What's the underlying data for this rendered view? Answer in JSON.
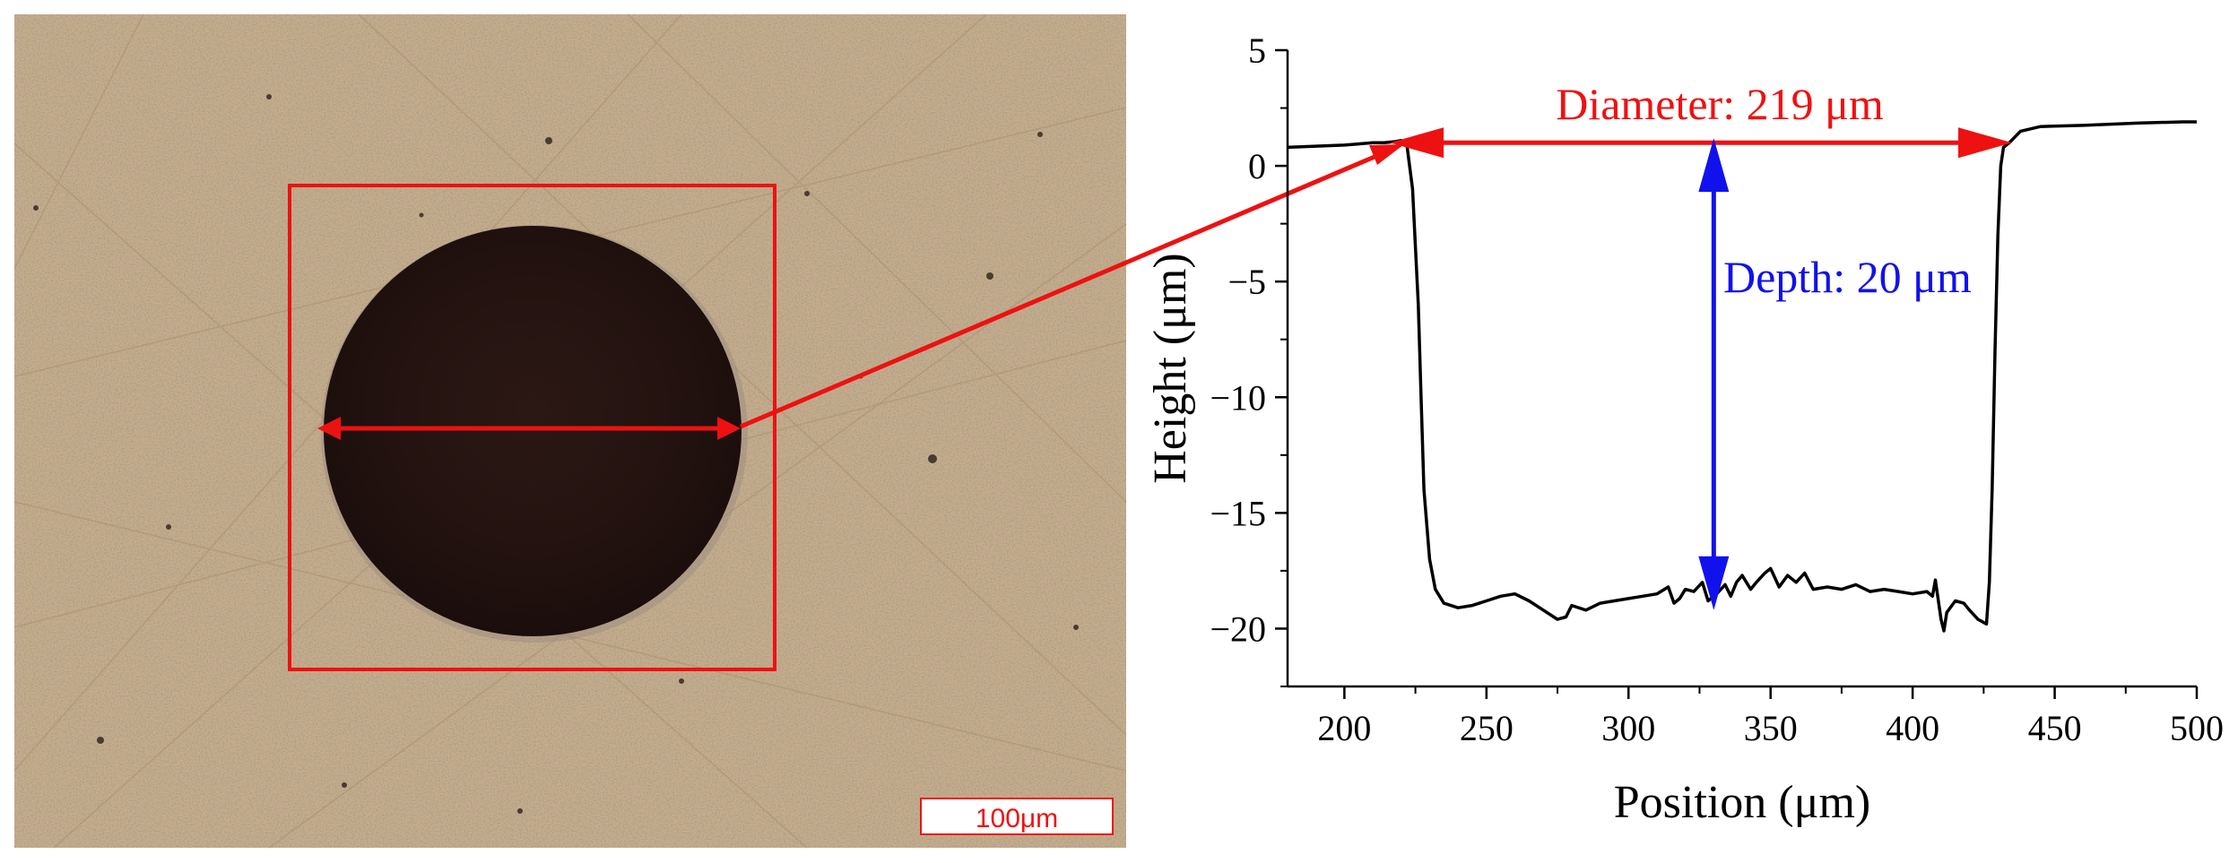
{
  "micrograph": {
    "scale_bar_label": "100μm",
    "box_color": "#ee1111",
    "arrow_color": "#ee1111"
  },
  "chart_data": {
    "type": "line",
    "xlabel": "Position (μm)",
    "ylabel": "Height (μm)",
    "xlim": [
      180,
      500
    ],
    "ylim": [
      -22.5,
      5
    ],
    "x_ticks": [
      200,
      250,
      300,
      350,
      400,
      450,
      500
    ],
    "y_ticks": [
      5,
      0,
      -5,
      -10,
      -15,
      -20
    ],
    "x_tick_labels": [
      "200",
      "250",
      "300",
      "350",
      "400",
      "450",
      "500"
    ],
    "y_tick_labels": [
      "5",
      "0",
      "−5",
      "−10",
      "−15",
      "−20"
    ],
    "grid": false,
    "series": [
      {
        "color": "#000000",
        "points": [
          [
            180,
            0.8
          ],
          [
            190,
            0.85
          ],
          [
            200,
            0.9
          ],
          [
            205,
            0.95
          ],
          [
            210,
            1.0
          ],
          [
            214,
            1.0
          ],
          [
            218,
            1.05
          ],
          [
            220,
            1.1
          ],
          [
            222,
            0.9
          ],
          [
            224,
            -1
          ],
          [
            226,
            -6
          ],
          [
            227,
            -10
          ],
          [
            228,
            -14
          ],
          [
            230,
            -17
          ],
          [
            232,
            -18.3
          ],
          [
            235,
            -18.9
          ],
          [
            240,
            -19.1
          ],
          [
            245,
            -19.0
          ],
          [
            250,
            -18.8
          ],
          [
            255,
            -18.6
          ],
          [
            260,
            -18.5
          ],
          [
            265,
            -18.8
          ],
          [
            270,
            -19.2
          ],
          [
            275,
            -19.6
          ],
          [
            278,
            -19.5
          ],
          [
            280,
            -19.0
          ],
          [
            285,
            -19.2
          ],
          [
            290,
            -18.9
          ],
          [
            295,
            -18.8
          ],
          [
            300,
            -18.7
          ],
          [
            305,
            -18.6
          ],
          [
            310,
            -18.5
          ],
          [
            314,
            -18.2
          ],
          [
            316,
            -18.9
          ],
          [
            318,
            -18.7
          ],
          [
            320,
            -18.3
          ],
          [
            323,
            -18.4
          ],
          [
            326,
            -18.0
          ],
          [
            328,
            -18.8
          ],
          [
            331,
            -18.5
          ],
          [
            334,
            -18.1
          ],
          [
            336,
            -18.6
          ],
          [
            338,
            -18.0
          ],
          [
            340,
            -17.7
          ],
          [
            343,
            -18.3
          ],
          [
            345,
            -18.0
          ],
          [
            348,
            -17.6
          ],
          [
            350,
            -17.4
          ],
          [
            353,
            -18.2
          ],
          [
            356,
            -17.7
          ],
          [
            359,
            -18.0
          ],
          [
            362,
            -17.6
          ],
          [
            365,
            -18.3
          ],
          [
            370,
            -18.2
          ],
          [
            375,
            -18.3
          ],
          [
            380,
            -18.1
          ],
          [
            385,
            -18.4
          ],
          [
            390,
            -18.3
          ],
          [
            395,
            -18.4
          ],
          [
            400,
            -18.5
          ],
          [
            405,
            -18.4
          ],
          [
            407,
            -18.6
          ],
          [
            408,
            -17.9
          ],
          [
            410,
            -19.6
          ],
          [
            411,
            -20.1
          ],
          [
            412,
            -19.3
          ],
          [
            415,
            -18.8
          ],
          [
            418,
            -18.9
          ],
          [
            420,
            -19.2
          ],
          [
            423,
            -19.6
          ],
          [
            426,
            -19.8
          ],
          [
            427,
            -18
          ],
          [
            428,
            -14
          ],
          [
            429,
            -8
          ],
          [
            430,
            -3
          ],
          [
            431,
            0
          ],
          [
            432,
            0.8
          ],
          [
            434,
            1.0
          ],
          [
            438,
            1.5
          ],
          [
            445,
            1.7
          ],
          [
            460,
            1.75
          ],
          [
            480,
            1.85
          ],
          [
            495,
            1.9
          ],
          [
            500,
            1.9
          ]
        ]
      }
    ],
    "annotations": {
      "diameter": {
        "text": "Diameter: 219 μm",
        "color": "#ee1111",
        "from_x": 216,
        "to_x": 435,
        "y": 1.0
      },
      "depth": {
        "text": "Depth: 20 μm",
        "color": "#1111ee",
        "x": 330,
        "from_y": 1.2,
        "to_y": -19.2
      }
    }
  }
}
